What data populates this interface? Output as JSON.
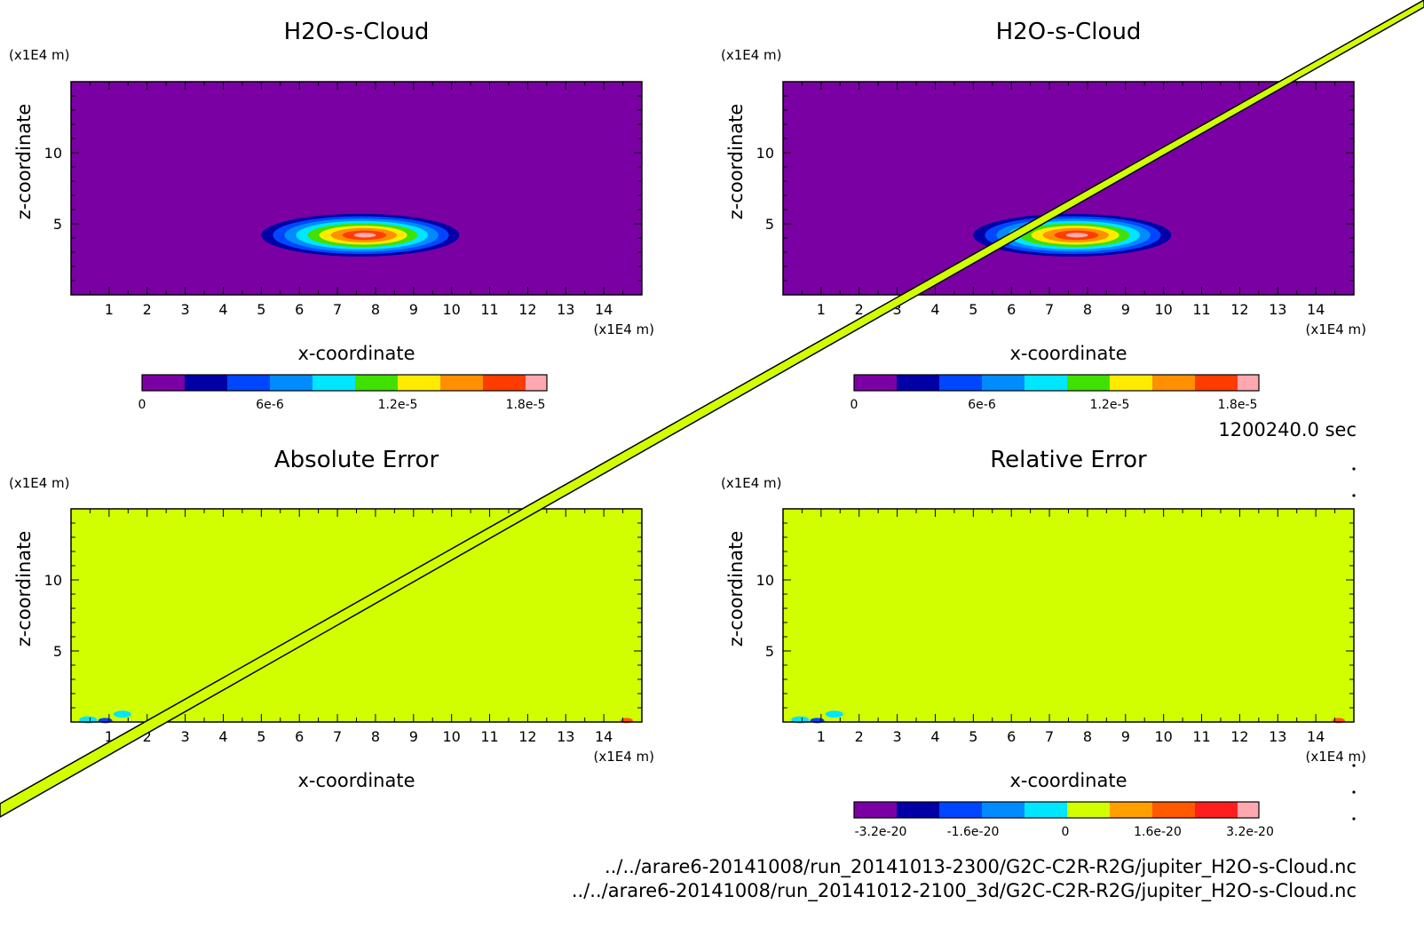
{
  "time_label": "1200240.0 sec",
  "files": [
    "../../arare6-20141008/run_20141013-2300/G2C-C2R-R2G/jupiter_H2O-s-Cloud.nc",
    "../../arare6-20141008/run_20141012-2100_3d/G2C-C2R-R2G/jupiter_H2O-s-Cloud.nc"
  ],
  "colors": {
    "background_purple": "#7b00a3",
    "background_lime": "#d2ff00",
    "diagonal_band": "#d2ff00"
  },
  "chart_data": [
    {
      "type": "heatmap",
      "title": "H2O-s-Cloud",
      "xlabel": "x-coordinate",
      "ylabel": "z-coordinate",
      "unit_x": "(x1E4 m)",
      "unit_y": "(x1E4 m)",
      "xlim": [
        0,
        15
      ],
      "ylim": [
        0,
        15
      ],
      "x_ticks": [
        "1",
        "2",
        "3",
        "4",
        "5",
        "6",
        "7",
        "8",
        "9",
        "10",
        "11",
        "12",
        "13",
        "14"
      ],
      "y_ticks": [
        "5",
        "10"
      ],
      "background": "#7b00a3",
      "blob": {
        "cx": 7.6,
        "cz": 4.2,
        "rx": 2.6,
        "rz": 1.5
      },
      "colorbar": {
        "labels": [
          "0",
          "6e-6",
          "1.2e-5",
          "1.8e-5"
        ],
        "colors": [
          "#7b00a3",
          "#0000a6",
          "#0046ff",
          "#008cff",
          "#00e6ff",
          "#40e000",
          "#ffeb00",
          "#ff9000",
          "#ff3c00",
          "#ffa8b0"
        ]
      }
    },
    {
      "type": "heatmap",
      "title": "H2O-s-Cloud",
      "xlabel": "x-coordinate",
      "ylabel": "z-coordinate",
      "unit_x": "(x1E4 m)",
      "unit_y": "(x1E4 m)",
      "xlim": [
        0,
        15
      ],
      "ylim": [
        0,
        15
      ],
      "x_ticks": [
        "1",
        "2",
        "3",
        "4",
        "5",
        "6",
        "7",
        "8",
        "9",
        "10",
        "11",
        "12",
        "13",
        "14"
      ],
      "y_ticks": [
        "5",
        "10"
      ],
      "background": "#7b00a3",
      "blob": {
        "cx": 7.6,
        "cz": 4.2,
        "rx": 2.6,
        "rz": 1.5
      },
      "colorbar": {
        "labels": [
          "0",
          "6e-6",
          "1.2e-5",
          "1.8e-5"
        ],
        "colors": [
          "#7b00a3",
          "#0000a6",
          "#0046ff",
          "#008cff",
          "#00e6ff",
          "#40e000",
          "#ffeb00",
          "#ff9000",
          "#ff3c00",
          "#ffa8b0"
        ]
      }
    },
    {
      "type": "heatmap",
      "title": "Absolute Error",
      "xlabel": "x-coordinate",
      "ylabel": "z-coordinate",
      "unit_x": "(x1E4 m)",
      "unit_y": "(x1E4 m)",
      "xlim": [
        0,
        15
      ],
      "ylim": [
        0,
        15
      ],
      "x_ticks": [
        "1",
        "2",
        "3",
        "4",
        "5",
        "6",
        "7",
        "8",
        "9",
        "10",
        "11",
        "12",
        "13",
        "14"
      ],
      "y_ticks": [
        "5",
        "10"
      ],
      "background": "#d2ff00"
    },
    {
      "type": "heatmap",
      "title": "Relative Error",
      "xlabel": "x-coordinate",
      "ylabel": "z-coordinate",
      "unit_x": "(x1E4 m)",
      "unit_y": "(x1E4 m)",
      "xlim": [
        0,
        15
      ],
      "ylim": [
        0,
        15
      ],
      "x_ticks": [
        "1",
        "2",
        "3",
        "4",
        "5",
        "6",
        "7",
        "8",
        "9",
        "10",
        "11",
        "12",
        "13",
        "14"
      ],
      "y_ticks": [
        "5",
        "10"
      ],
      "background": "#d2ff00",
      "colorbar": {
        "labels": [
          "-3.2e-20",
          "-1.6e-20",
          "0",
          "1.6e-20",
          "3.2e-20"
        ],
        "colors": [
          "#7b00a3",
          "#0000a6",
          "#0046ff",
          "#008cff",
          "#00e6ff",
          "#d2ff00",
          "#ffa000",
          "#ff5a00",
          "#ff1e1e",
          "#ffa8b0"
        ]
      }
    }
  ]
}
